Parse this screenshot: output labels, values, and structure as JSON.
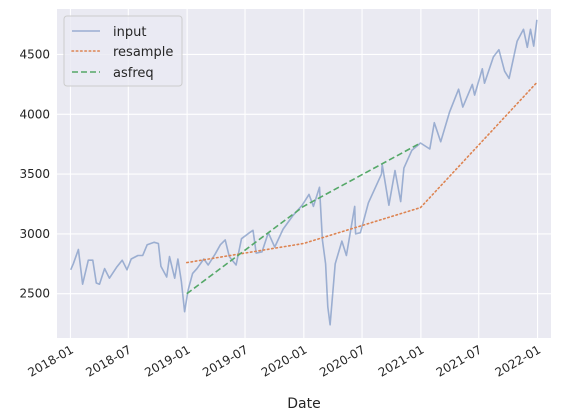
{
  "chart_data": {
    "type": "line",
    "title": "",
    "xlabel": "Date",
    "ylabel": "",
    "x_axis_type": "date",
    "xlim": [
      "2017-11-20",
      "2022-02-12"
    ],
    "ylim": [
      2130,
      4880
    ],
    "x_ticks": [
      {
        "value": "2018-01-01",
        "label": "2018-01"
      },
      {
        "value": "2018-07-01",
        "label": "2018-07"
      },
      {
        "value": "2019-01-01",
        "label": "2019-01"
      },
      {
        "value": "2019-07-01",
        "label": "2019-07"
      },
      {
        "value": "2020-01-01",
        "label": "2020-01"
      },
      {
        "value": "2020-07-01",
        "label": "2020-07"
      },
      {
        "value": "2021-01-01",
        "label": "2021-01"
      },
      {
        "value": "2021-07-01",
        "label": "2021-07"
      },
      {
        "value": "2022-01-01",
        "label": "2022-01"
      }
    ],
    "y_ticks": [
      2500,
      3000,
      3500,
      4000,
      4500
    ],
    "grid": true,
    "background": "#eaeaf2",
    "legend": {
      "placement": "top-left"
    },
    "series": [
      {
        "name": "input",
        "color": "#4c72b0",
        "opacity": 0.5,
        "style": "solid",
        "points": [
          [
            "2018-01-02",
            2700
          ],
          [
            "2018-01-10",
            2750
          ],
          [
            "2018-01-26",
            2870
          ],
          [
            "2018-02-05",
            2650
          ],
          [
            "2018-02-08",
            2580
          ],
          [
            "2018-02-26",
            2780
          ],
          [
            "2018-03-12",
            2780
          ],
          [
            "2018-03-23",
            2590
          ],
          [
            "2018-04-02",
            2580
          ],
          [
            "2018-04-18",
            2710
          ],
          [
            "2018-05-03",
            2630
          ],
          [
            "2018-05-25",
            2720
          ],
          [
            "2018-06-12",
            2780
          ],
          [
            "2018-06-27",
            2700
          ],
          [
            "2018-07-10",
            2790
          ],
          [
            "2018-07-31",
            2820
          ],
          [
            "2018-08-15",
            2820
          ],
          [
            "2018-08-29",
            2910
          ],
          [
            "2018-09-20",
            2930
          ],
          [
            "2018-10-03",
            2920
          ],
          [
            "2018-10-11",
            2730
          ],
          [
            "2018-10-29",
            2640
          ],
          [
            "2018-11-07",
            2810
          ],
          [
            "2018-11-23",
            2630
          ],
          [
            "2018-12-03",
            2790
          ],
          [
            "2018-12-14",
            2600
          ],
          [
            "2018-12-24",
            2350
          ],
          [
            "2019-01-04",
            2530
          ],
          [
            "2019-01-18",
            2670
          ],
          [
            "2019-02-01",
            2710
          ],
          [
            "2019-02-22",
            2790
          ],
          [
            "2019-03-08",
            2740
          ],
          [
            "2019-03-29",
            2830
          ],
          [
            "2019-04-15",
            2910
          ],
          [
            "2019-04-30",
            2950
          ],
          [
            "2019-05-13",
            2810
          ],
          [
            "2019-06-03",
            2740
          ],
          [
            "2019-06-20",
            2960
          ],
          [
            "2019-07-15",
            3010
          ],
          [
            "2019-07-26",
            3030
          ],
          [
            "2019-08-05",
            2840
          ],
          [
            "2019-08-23",
            2850
          ],
          [
            "2019-09-12",
            3010
          ],
          [
            "2019-10-02",
            2890
          ],
          [
            "2019-10-28",
            3040
          ],
          [
            "2019-11-27",
            3150
          ],
          [
            "2019-12-27",
            3240
          ],
          [
            "2020-01-17",
            3330
          ],
          [
            "2020-01-31",
            3230
          ],
          [
            "2020-02-19",
            3390
          ],
          [
            "2020-02-28",
            2950
          ],
          [
            "2020-03-09",
            2750
          ],
          [
            "2020-03-16",
            2390
          ],
          [
            "2020-03-23",
            2240
          ],
          [
            "2020-04-08",
            2750
          ],
          [
            "2020-04-29",
            2940
          ],
          [
            "2020-05-13",
            2820
          ],
          [
            "2020-06-08",
            3230
          ],
          [
            "2020-06-11",
            3000
          ],
          [
            "2020-06-26",
            3010
          ],
          [
            "2020-07-21",
            3260
          ],
          [
            "2020-08-31",
            3500
          ],
          [
            "2020-09-02",
            3580
          ],
          [
            "2020-09-23",
            3240
          ],
          [
            "2020-10-12",
            3530
          ],
          [
            "2020-10-30",
            3270
          ],
          [
            "2020-11-09",
            3550
          ],
          [
            "2020-12-04",
            3700
          ],
          [
            "2020-12-31",
            3760
          ],
          [
            "2021-01-29",
            3710
          ],
          [
            "2021-02-12",
            3930
          ],
          [
            "2021-03-04",
            3770
          ],
          [
            "2021-04-01",
            4020
          ],
          [
            "2021-04-29",
            4210
          ],
          [
            "2021-05-12",
            4060
          ],
          [
            "2021-06-11",
            4250
          ],
          [
            "2021-06-18",
            4160
          ],
          [
            "2021-07-12",
            4380
          ],
          [
            "2021-07-19",
            4260
          ],
          [
            "2021-08-16",
            4480
          ],
          [
            "2021-09-02",
            4540
          ],
          [
            "2021-09-20",
            4360
          ],
          [
            "2021-10-04",
            4300
          ],
          [
            "2021-10-29",
            4610
          ],
          [
            "2021-11-18",
            4710
          ],
          [
            "2021-11-30",
            4560
          ],
          [
            "2021-12-10",
            4710
          ],
          [
            "2021-12-20",
            4570
          ],
          [
            "2021-12-30",
            4790
          ]
        ]
      },
      {
        "name": "resample",
        "color": "#dd8452",
        "opacity": 1,
        "style": "dotted",
        "points": [
          [
            "2018-12-31",
            2760
          ],
          [
            "2019-12-31",
            2920
          ],
          [
            "2020-12-31",
            3220
          ],
          [
            "2021-12-31",
            4270
          ]
        ]
      },
      {
        "name": "asfreq",
        "color": "#55a868",
        "opacity": 1,
        "style": "dashed",
        "points": [
          [
            "2018-12-31",
            2500
          ],
          [
            "2019-12-31",
            3230
          ],
          [
            "2020-12-31",
            3760
          ]
        ]
      }
    ]
  }
}
